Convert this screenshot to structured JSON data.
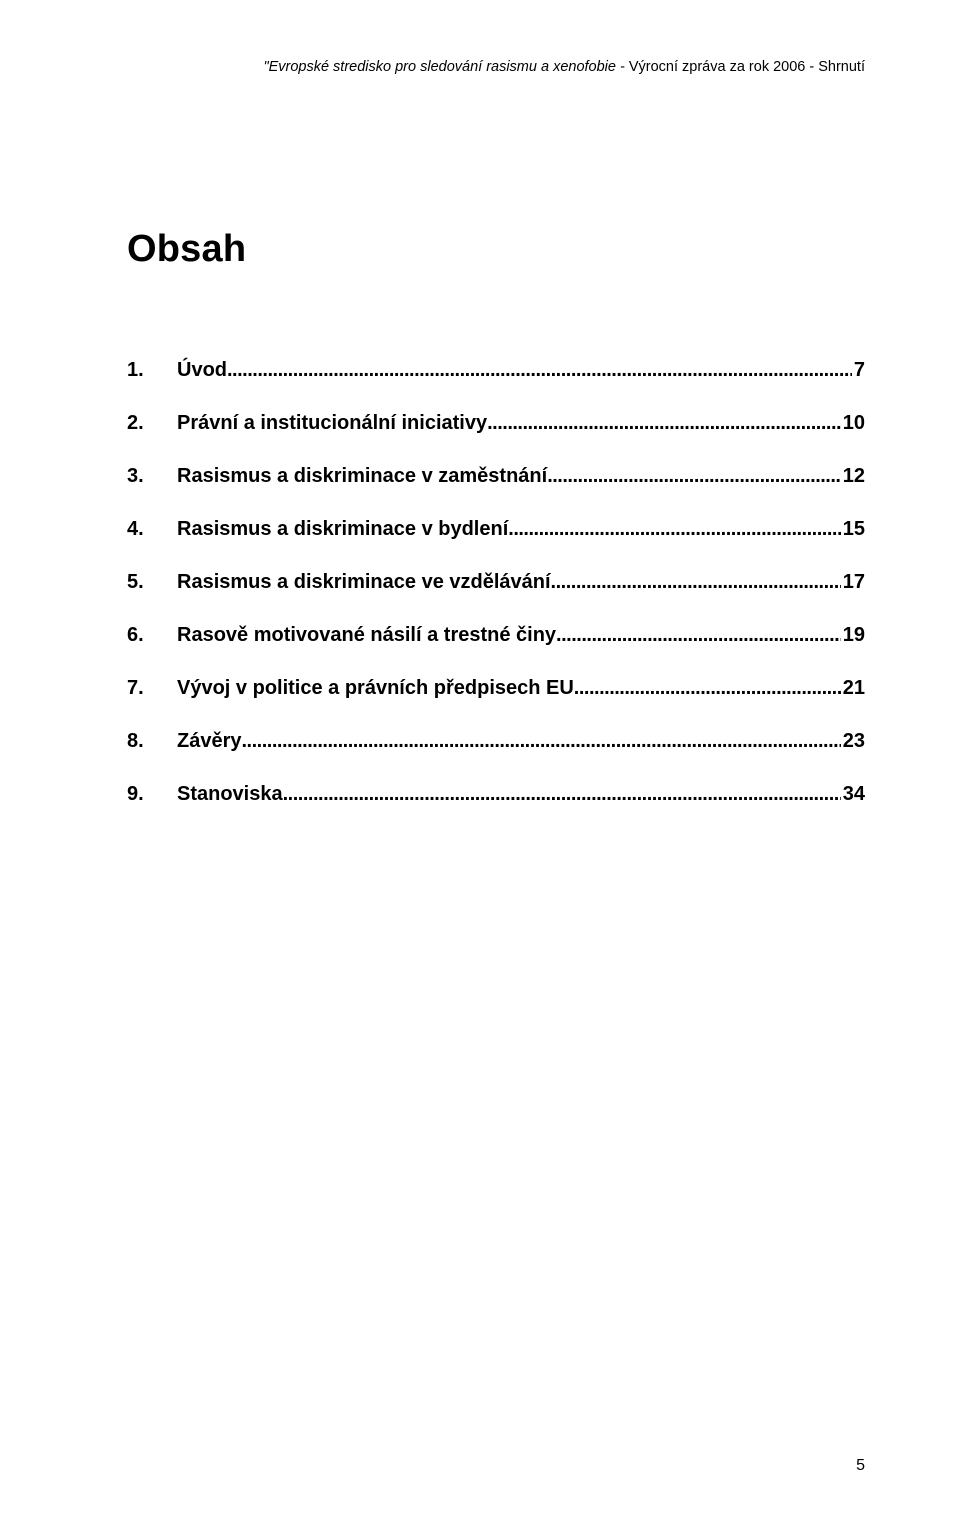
{
  "header": {
    "prefix": "\"Evropské stredisko pro sledování rasismu a xenofobie - ",
    "suffix": "Výrocní zpráva za rok 2006 - Shrnutí"
  },
  "title": "Obsah",
  "toc": [
    {
      "num": "1.",
      "label": "Úvod",
      "page": "7"
    },
    {
      "num": "2.",
      "label": "Právní a institucionální iniciativy",
      "page": "10"
    },
    {
      "num": "3.",
      "label": "Rasismus a diskriminace v zaměstnání",
      "page": "12"
    },
    {
      "num": "4.",
      "label": "Rasismus a diskriminace v bydlení",
      "page": "15"
    },
    {
      "num": "5.",
      "label": "Rasismus a diskriminace ve vzdělávání",
      "page": "17"
    },
    {
      "num": "6.",
      "label": "Rasově motivované násilí a trestné činy",
      "page": "19"
    },
    {
      "num": "7.",
      "label": "Vývoj v politice a právních předpisech EU",
      "page": "21"
    },
    {
      "num": "8.",
      "label": "Závěry",
      "page": "23"
    },
    {
      "num": "9.",
      "label": "Stanoviska",
      "page": "34"
    }
  ],
  "page_number": "5"
}
